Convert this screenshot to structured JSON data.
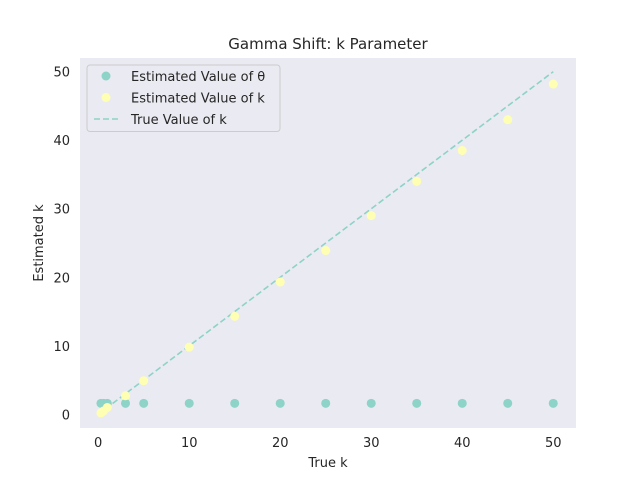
{
  "chart_data": {
    "type": "scatter",
    "title": "Gamma Shift: k Parameter",
    "xlabel": "True k",
    "ylabel": "Estimated k",
    "xlim": [
      -2,
      52.5
    ],
    "ylim": [
      -2,
      52
    ],
    "xticks": [
      0,
      10,
      20,
      30,
      40,
      50
    ],
    "yticks": [
      0,
      10,
      20,
      30,
      40,
      50
    ],
    "grid": false,
    "legend_position": "upper-left",
    "background": "#eaeaf2",
    "series": [
      {
        "name": "Estimated Value of θ",
        "kind": "scatter",
        "color": "#8dd3c7",
        "x": [
          0.3,
          0.6,
          1,
          3,
          5,
          10,
          15,
          20,
          25,
          30,
          35,
          40,
          45,
          50
        ],
        "y": [
          1.6,
          1.6,
          1.6,
          1.6,
          1.6,
          1.6,
          1.6,
          1.6,
          1.6,
          1.6,
          1.6,
          1.6,
          1.6,
          1.6
        ]
      },
      {
        "name": "Estimated Value of k",
        "kind": "scatter",
        "color": "#ffffb3",
        "x": [
          0.3,
          0.6,
          1,
          3,
          5,
          10,
          15,
          20,
          25,
          30,
          35,
          40,
          45,
          50
        ],
        "y": [
          0.2,
          0.5,
          1.0,
          2.7,
          4.9,
          9.8,
          14.3,
          19.3,
          23.9,
          29.0,
          34.0,
          38.5,
          43.0,
          48.2
        ]
      },
      {
        "name": "True Value of k",
        "kind": "line",
        "style": "dashed",
        "color": "#8dd3c7",
        "x": [
          0,
          50
        ],
        "y": [
          0,
          50
        ]
      }
    ]
  }
}
